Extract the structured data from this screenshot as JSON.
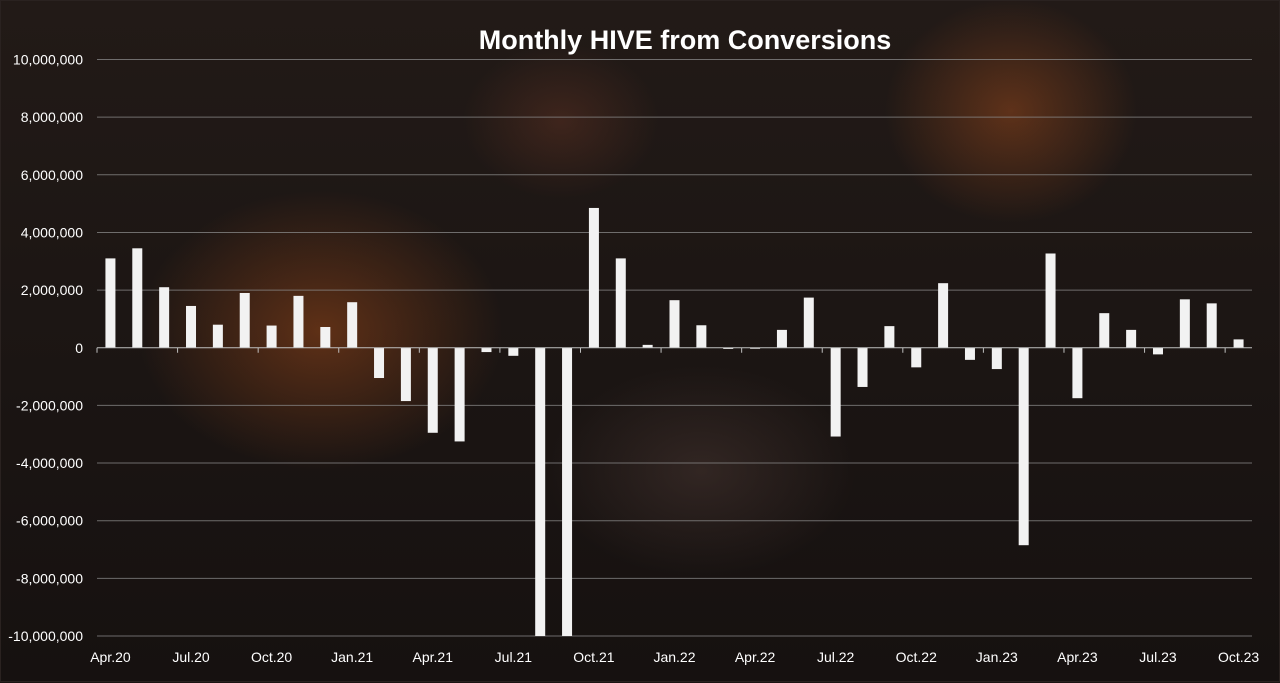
{
  "chart_data": {
    "type": "bar",
    "title": "Monthly HIVE from Conversions",
    "xlabel": "",
    "ylabel": "",
    "ylim": [
      -10000000,
      10000000
    ],
    "yticks": [
      {
        "value": 10000000,
        "label": "10,000,000"
      },
      {
        "value": 8000000,
        "label": "8,000,000"
      },
      {
        "value": 6000000,
        "label": "6,000,000"
      },
      {
        "value": 4000000,
        "label": "4,000,000"
      },
      {
        "value": 2000000,
        "label": "2,000,000"
      },
      {
        "value": 0,
        "label": "0"
      },
      {
        "value": -2000000,
        "label": "-2,000,000"
      },
      {
        "value": -4000000,
        "label": "-4,000,000"
      },
      {
        "value": -6000000,
        "label": "-6,000,000"
      },
      {
        "value": -8000000,
        "label": "-8,000,000"
      },
      {
        "value": -10000000,
        "label": "-10,000,000"
      }
    ],
    "xticks": [
      {
        "index": 0,
        "label": "Apr.20"
      },
      {
        "index": 3,
        "label": "Jul.20"
      },
      {
        "index": 6,
        "label": "Oct.20"
      },
      {
        "index": 9,
        "label": "Jan.21"
      },
      {
        "index": 12,
        "label": "Apr.21"
      },
      {
        "index": 15,
        "label": "Jul.21"
      },
      {
        "index": 18,
        "label": "Oct.21"
      },
      {
        "index": 21,
        "label": "Jan.22"
      },
      {
        "index": 24,
        "label": "Apr.22"
      },
      {
        "index": 27,
        "label": "Jul.22"
      },
      {
        "index": 30,
        "label": "Oct.22"
      },
      {
        "index": 33,
        "label": "Jan.23"
      },
      {
        "index": 36,
        "label": "Apr.23"
      },
      {
        "index": 39,
        "label": "Jul.23"
      },
      {
        "index": 42,
        "label": "Oct.23"
      }
    ],
    "categories": [
      "Apr.20",
      "May.20",
      "Jun.20",
      "Jul.20",
      "Aug.20",
      "Sep.20",
      "Oct.20",
      "Nov.20",
      "Dec.20",
      "Jan.21",
      "Feb.21",
      "Mar.21",
      "Apr.21",
      "May.21",
      "Jun.21",
      "Jul.21",
      "Aug.21",
      "Sep.21",
      "Oct.21",
      "Nov.21",
      "Dec.21",
      "Jan.22",
      "Feb.22",
      "Mar.22",
      "Apr.22",
      "May.22",
      "Jun.22",
      "Jul.22",
      "Aug.22",
      "Sep.22",
      "Oct.22",
      "Nov.22",
      "Dec.22",
      "Jan.23",
      "Feb.23",
      "Mar.23",
      "Apr.23",
      "May.23",
      "Jun.23",
      "Jul.23",
      "Aug.23",
      "Sep.23",
      "Oct.23"
    ],
    "values": [
      3100000,
      3450000,
      2100000,
      1450000,
      800000,
      1900000,
      770000,
      1800000,
      720000,
      1580000,
      -1050000,
      -1850000,
      -2950000,
      -3250000,
      -150000,
      -280000,
      -10000000,
      -10000000,
      4850000,
      3100000,
      100000,
      1650000,
      780000,
      -40000,
      -30000,
      620000,
      1740000,
      -3080000,
      -1360000,
      750000,
      -680000,
      2240000,
      -420000,
      -740000,
      -6850000,
      3270000,
      -1750000,
      1200000,
      620000,
      -230000,
      1680000,
      1540000,
      290000
    ],
    "grid": true,
    "legend": "none",
    "colors": {
      "bar": "#f2f2f2",
      "grid": "#8a8a8a",
      "axis": "#bfbfbf",
      "text": "#ffffff"
    }
  }
}
